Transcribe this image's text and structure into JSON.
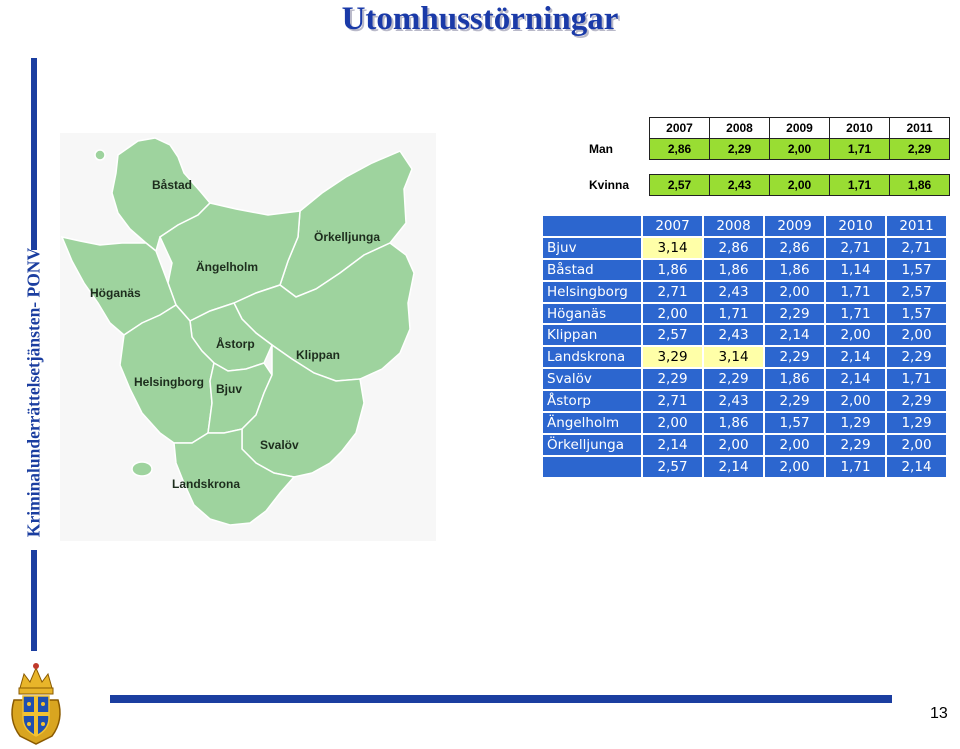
{
  "title": "Utomhusstörningar",
  "sidebar_text": "Kriminalunderrättelsetjänsten- PONV",
  "page_number": "13",
  "map": {
    "labels": [
      "Båstad",
      "Örkelljunga",
      "Ängelholm",
      "Höganäs",
      "Åstorp",
      "Klippan",
      "Helsingborg",
      "Bjuv",
      "Svalöv",
      "Landskrona"
    ]
  },
  "gender_table": {
    "years": [
      "2007",
      "2008",
      "2009",
      "2010",
      "2011"
    ],
    "rows": [
      {
        "label": "Man",
        "values": [
          "2,86",
          "2,29",
          "2,00",
          "1,71",
          "2,29"
        ]
      },
      {
        "label": "Kvinna",
        "values": [
          "2,57",
          "2,43",
          "2,00",
          "1,71",
          "1,86"
        ]
      }
    ]
  },
  "municipality_table": {
    "years": [
      "2007",
      "2008",
      "2009",
      "2010",
      "2011"
    ],
    "rows": [
      {
        "name": "Bjuv",
        "values": [
          "3,14",
          "2,86",
          "2,86",
          "2,71",
          "2,71"
        ]
      },
      {
        "name": "Båstad",
        "values": [
          "1,86",
          "1,86",
          "1,86",
          "1,14",
          "1,57"
        ]
      },
      {
        "name": "Helsingborg",
        "values": [
          "2,71",
          "2,43",
          "2,00",
          "1,71",
          "2,57"
        ]
      },
      {
        "name": "Höganäs",
        "values": [
          "2,00",
          "1,71",
          "2,29",
          "1,71",
          "1,57"
        ]
      },
      {
        "name": "Klippan",
        "values": [
          "2,57",
          "2,43",
          "2,14",
          "2,00",
          "2,00"
        ]
      },
      {
        "name": "Landskrona",
        "values": [
          "3,29",
          "3,14",
          "2,29",
          "2,14",
          "2,29"
        ]
      },
      {
        "name": "Svalöv",
        "values": [
          "2,29",
          "2,29",
          "1,86",
          "2,14",
          "1,71"
        ]
      },
      {
        "name": "Åstorp",
        "values": [
          "2,71",
          "2,43",
          "2,29",
          "2,00",
          "2,29"
        ]
      },
      {
        "name": "Ängelholm",
        "values": [
          "2,00",
          "1,86",
          "1,57",
          "1,29",
          "1,29"
        ]
      },
      {
        "name": "Örkelljunga",
        "values": [
          "2,14",
          "2,00",
          "2,00",
          "2,29",
          "2,00"
        ]
      }
    ],
    "total": [
      "2,57",
      "2,14",
      "2,00",
      "1,71",
      "2,14"
    ],
    "highlight_color": "#ffffa8",
    "cell_color": "#2c66cf"
  }
}
